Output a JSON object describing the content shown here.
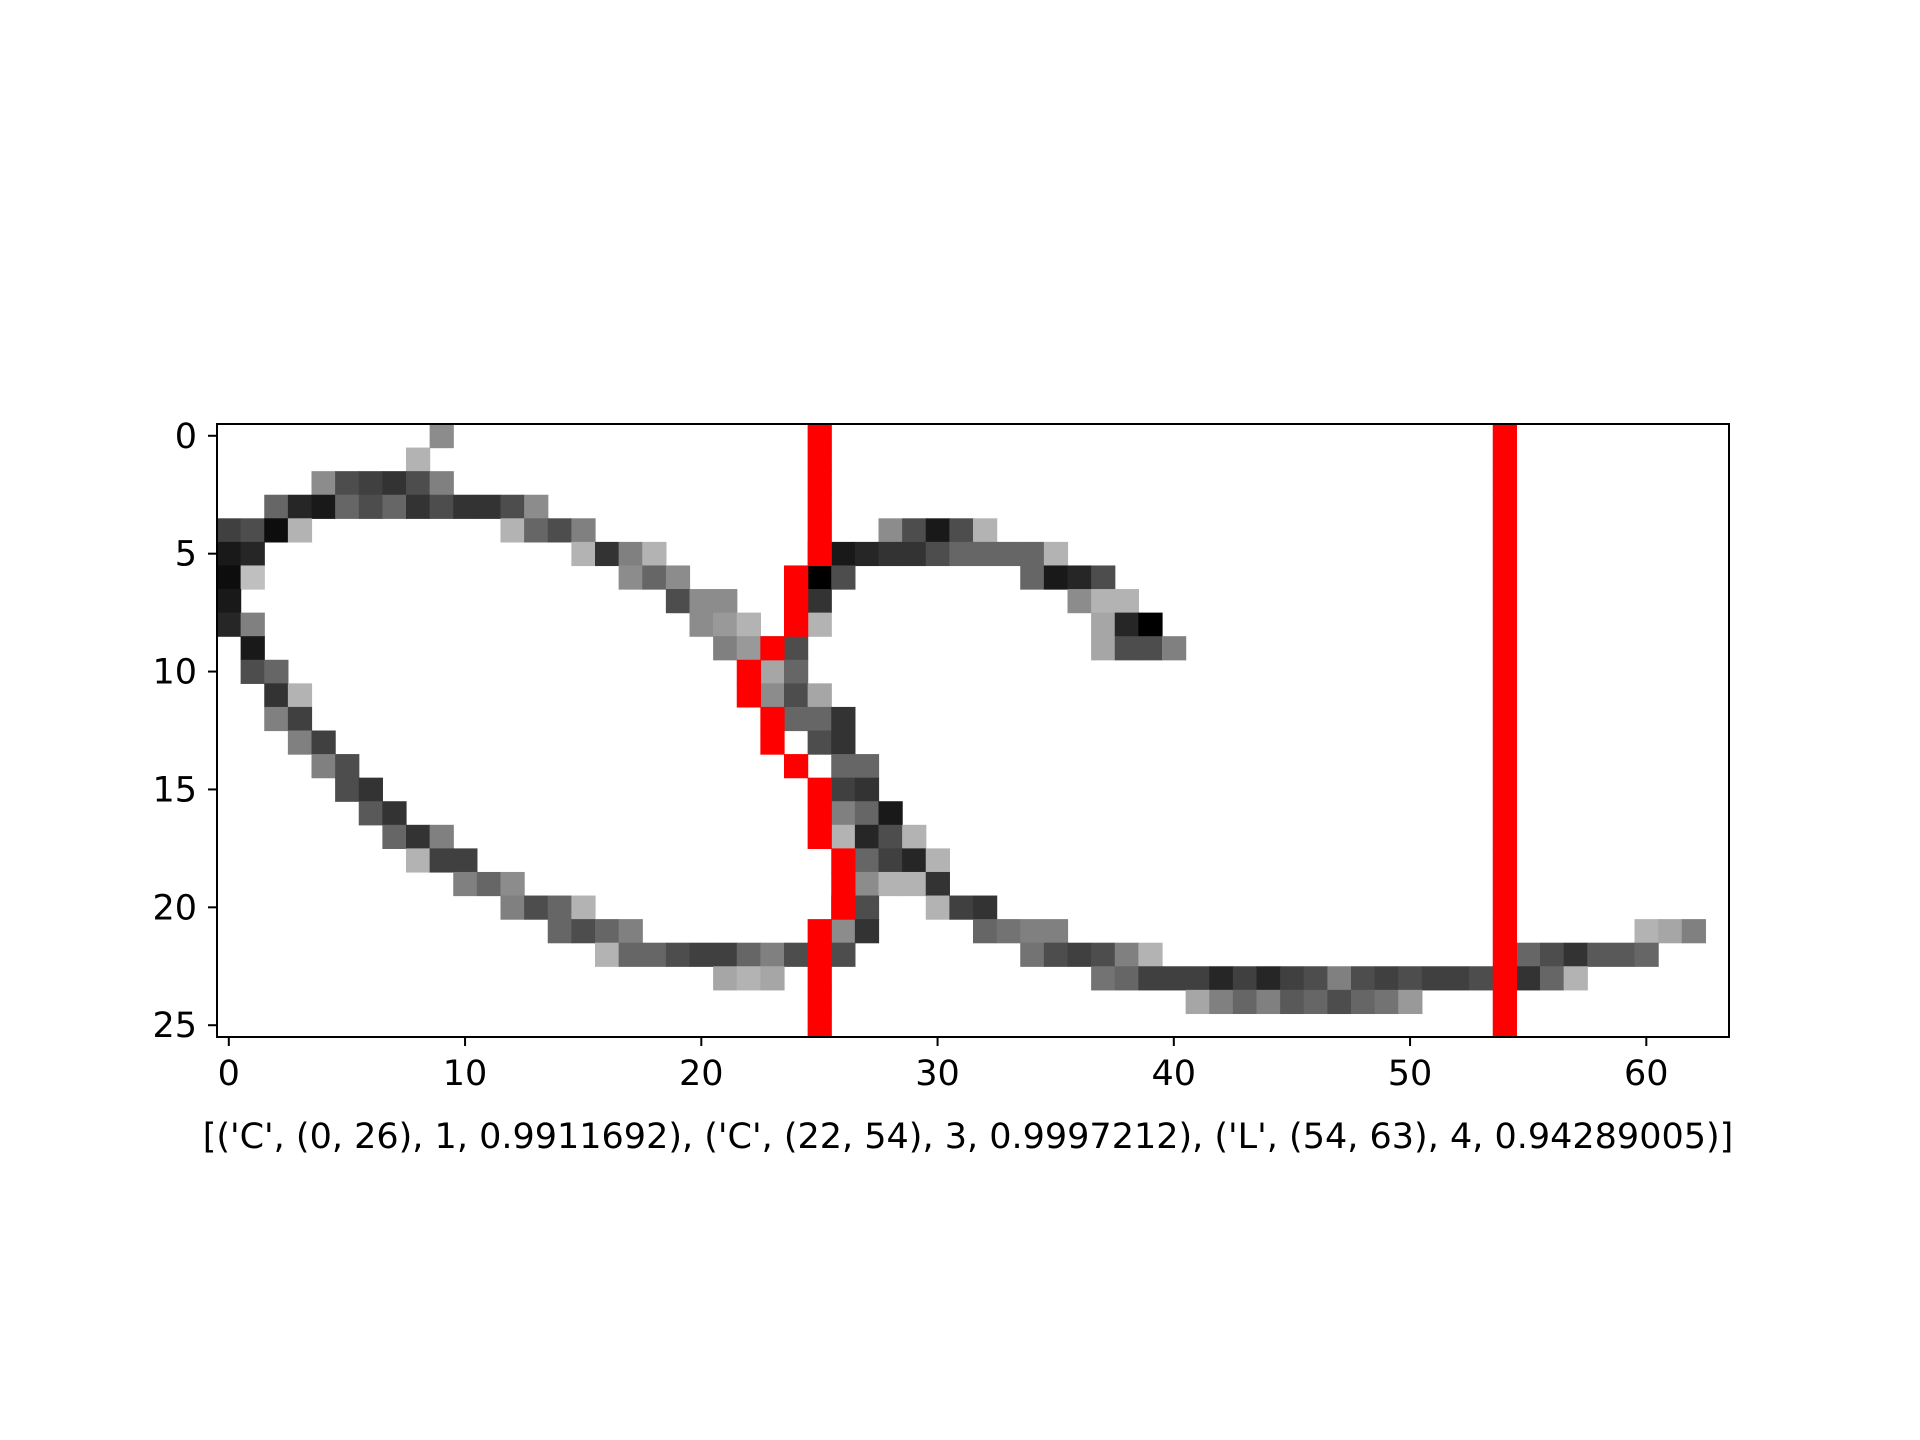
{
  "chart_data": {
    "type": "heatmap",
    "title": "",
    "xlabel": "[('C', (0, 26), 1, 0.9911692), ('C', (22, 54), 3, 0.9997212), ('L', (54, 63), 4, 0.94289005)]",
    "ylabel": "",
    "x_ticks": [
      "0",
      "10",
      "20",
      "30",
      "40",
      "50",
      "60"
    ],
    "y_ticks": [
      "0",
      "5",
      "10",
      "15",
      "20",
      "25"
    ],
    "xlim": [
      -0.5,
      63.5
    ],
    "ylim": [
      25.5,
      -0.5
    ],
    "columns": 64,
    "rows": 26,
    "colormap": "gray_r",
    "segment_color": "#ff0000",
    "grayscale_pixels": [
      [
        9,
        0,
        0.45
      ],
      [
        8,
        1,
        0.3
      ],
      [
        4,
        2,
        0.45
      ],
      [
        5,
        2,
        0.7
      ],
      [
        6,
        2,
        0.75
      ],
      [
        7,
        2,
        0.8
      ],
      [
        8,
        2,
        0.7
      ],
      [
        9,
        2,
        0.5
      ],
      [
        2,
        3,
        0.6
      ],
      [
        3,
        3,
        0.85
      ],
      [
        4,
        3,
        0.9
      ],
      [
        5,
        3,
        0.6
      ],
      [
        6,
        3,
        0.7
      ],
      [
        7,
        3,
        0.6
      ],
      [
        8,
        3,
        0.8
      ],
      [
        9,
        3,
        0.7
      ],
      [
        10,
        3,
        0.8
      ],
      [
        11,
        3,
        0.8
      ],
      [
        12,
        3,
        0.7
      ],
      [
        13,
        3,
        0.45
      ],
      [
        0,
        4,
        0.75
      ],
      [
        1,
        4,
        0.7
      ],
      [
        2,
        4,
        0.95
      ],
      [
        3,
        4,
        0.3
      ],
      [
        12,
        4,
        0.3
      ],
      [
        13,
        4,
        0.6
      ],
      [
        14,
        4,
        0.7
      ],
      [
        15,
        4,
        0.5
      ],
      [
        28,
        4,
        0.45
      ],
      [
        29,
        4,
        0.7
      ],
      [
        30,
        4,
        0.9
      ],
      [
        31,
        4,
        0.7
      ],
      [
        32,
        4,
        0.3
      ],
      [
        0,
        5,
        0.9
      ],
      [
        1,
        5,
        0.85
      ],
      [
        15,
        5,
        0.3
      ],
      [
        16,
        5,
        0.8
      ],
      [
        17,
        5,
        0.5
      ],
      [
        18,
        5,
        0.3
      ],
      [
        25,
        5,
        0.4
      ],
      [
        26,
        5,
        0.9
      ],
      [
        27,
        5,
        0.85
      ],
      [
        28,
        5,
        0.8
      ],
      [
        29,
        5,
        0.8
      ],
      [
        30,
        5,
        0.7
      ],
      [
        31,
        5,
        0.6
      ],
      [
        32,
        5,
        0.6
      ],
      [
        33,
        5,
        0.6
      ],
      [
        34,
        5,
        0.6
      ],
      [
        35,
        5,
        0.3
      ],
      [
        0,
        6,
        0.95
      ],
      [
        1,
        6,
        0.25
      ],
      [
        17,
        6,
        0.45
      ],
      [
        18,
        6,
        0.6
      ],
      [
        19,
        6,
        0.45
      ],
      [
        24,
        6,
        0.35
      ],
      [
        25,
        6,
        1.0
      ],
      [
        26,
        6,
        0.7
      ],
      [
        34,
        6,
        0.6
      ],
      [
        35,
        6,
        0.9
      ],
      [
        36,
        6,
        0.85
      ],
      [
        37,
        6,
        0.7
      ],
      [
        0,
        7,
        0.9
      ],
      [
        19,
        7,
        0.7
      ],
      [
        20,
        7,
        0.45
      ],
      [
        21,
        7,
        0.45
      ],
      [
        24,
        7,
        1.0
      ],
      [
        25,
        7,
        0.8
      ],
      [
        36,
        7,
        0.45
      ],
      [
        37,
        7,
        0.3
      ],
      [
        38,
        7,
        0.3
      ],
      [
        0,
        8,
        0.85
      ],
      [
        1,
        8,
        0.5
      ],
      [
        20,
        8,
        0.45
      ],
      [
        21,
        8,
        0.4
      ],
      [
        22,
        8,
        0.3
      ],
      [
        24,
        8,
        1.0
      ],
      [
        25,
        8,
        0.3
      ],
      [
        37,
        8,
        0.35
      ],
      [
        38,
        8,
        0.85
      ],
      [
        39,
        8,
        1.0
      ],
      [
        1,
        9,
        0.9
      ],
      [
        21,
        9,
        0.5
      ],
      [
        22,
        9,
        0.4
      ],
      [
        23,
        9,
        0.5
      ],
      [
        24,
        9,
        0.7
      ],
      [
        37,
        9,
        0.35
      ],
      [
        38,
        9,
        0.7
      ],
      [
        39,
        9,
        0.7
      ],
      [
        40,
        9,
        0.5
      ],
      [
        1,
        10,
        0.7
      ],
      [
        2,
        10,
        0.6
      ],
      [
        23,
        10,
        0.35
      ],
      [
        24,
        10,
        0.6
      ],
      [
        2,
        11,
        0.8
      ],
      [
        3,
        11,
        0.3
      ],
      [
        23,
        11,
        0.45
      ],
      [
        24,
        11,
        0.7
      ],
      [
        25,
        11,
        0.35
      ],
      [
        2,
        12,
        0.5
      ],
      [
        3,
        12,
        0.75
      ],
      [
        24,
        12,
        0.6
      ],
      [
        25,
        12,
        0.6
      ],
      [
        26,
        12,
        0.8
      ],
      [
        3,
        13,
        0.5
      ],
      [
        4,
        13,
        0.75
      ],
      [
        25,
        13,
        0.7
      ],
      [
        26,
        13,
        0.8
      ],
      [
        4,
        14,
        0.5
      ],
      [
        5,
        14,
        0.7
      ],
      [
        26,
        14,
        0.6
      ],
      [
        27,
        14,
        0.6
      ],
      [
        5,
        15,
        0.7
      ],
      [
        6,
        15,
        0.8
      ],
      [
        26,
        15,
        0.75
      ],
      [
        27,
        15,
        0.8
      ],
      [
        6,
        16,
        0.65
      ],
      [
        7,
        16,
        0.8
      ],
      [
        26,
        16,
        0.5
      ],
      [
        27,
        16,
        0.6
      ],
      [
        28,
        16,
        0.9
      ],
      [
        7,
        17,
        0.6
      ],
      [
        8,
        17,
        0.8
      ],
      [
        9,
        17,
        0.5
      ],
      [
        26,
        17,
        0.3
      ],
      [
        27,
        17,
        0.85
      ],
      [
        28,
        17,
        0.7
      ],
      [
        29,
        17,
        0.3
      ],
      [
        8,
        18,
        0.3
      ],
      [
        9,
        18,
        0.75
      ],
      [
        10,
        18,
        0.75
      ],
      [
        27,
        18,
        0.6
      ],
      [
        28,
        18,
        0.75
      ],
      [
        29,
        18,
        0.85
      ],
      [
        30,
        18,
        0.3
      ],
      [
        10,
        19,
        0.5
      ],
      [
        11,
        19,
        0.6
      ],
      [
        12,
        19,
        0.45
      ],
      [
        27,
        19,
        0.45
      ],
      [
        28,
        19,
        0.3
      ],
      [
        29,
        19,
        0.3
      ],
      [
        30,
        19,
        0.8
      ],
      [
        12,
        20,
        0.5
      ],
      [
        13,
        20,
        0.7
      ],
      [
        14,
        20,
        0.6
      ],
      [
        15,
        20,
        0.3
      ],
      [
        26,
        20,
        0.65
      ],
      [
        27,
        20,
        0.7
      ],
      [
        30,
        20,
        0.3
      ],
      [
        31,
        20,
        0.75
      ],
      [
        32,
        20,
        0.8
      ],
      [
        14,
        21,
        0.6
      ],
      [
        15,
        21,
        0.7
      ],
      [
        16,
        21,
        0.6
      ],
      [
        17,
        21,
        0.5
      ],
      [
        26,
        21,
        0.45
      ],
      [
        27,
        21,
        0.8
      ],
      [
        32,
        21,
        0.6
      ],
      [
        33,
        21,
        0.55
      ],
      [
        34,
        21,
        0.5
      ],
      [
        35,
        21,
        0.5
      ],
      [
        60,
        21,
        0.3
      ],
      [
        61,
        21,
        0.35
      ],
      [
        62,
        21,
        0.5
      ],
      [
        16,
        22,
        0.3
      ],
      [
        17,
        22,
        0.6
      ],
      [
        18,
        22,
        0.6
      ],
      [
        19,
        22,
        0.7
      ],
      [
        20,
        22,
        0.75
      ],
      [
        21,
        22,
        0.75
      ],
      [
        22,
        22,
        0.6
      ],
      [
        23,
        22,
        0.5
      ],
      [
        24,
        22,
        0.7
      ],
      [
        26,
        22,
        0.7
      ],
      [
        34,
        22,
        0.55
      ],
      [
        35,
        22,
        0.7
      ],
      [
        36,
        22,
        0.75
      ],
      [
        37,
        22,
        0.7
      ],
      [
        38,
        22,
        0.5
      ],
      [
        39,
        22,
        0.3
      ],
      [
        55,
        22,
        0.6
      ],
      [
        56,
        22,
        0.7
      ],
      [
        57,
        22,
        0.8
      ],
      [
        58,
        22,
        0.65
      ],
      [
        59,
        22,
        0.65
      ],
      [
        60,
        22,
        0.6
      ],
      [
        21,
        23,
        0.35
      ],
      [
        22,
        23,
        0.3
      ],
      [
        23,
        23,
        0.35
      ],
      [
        37,
        23,
        0.55
      ],
      [
        38,
        23,
        0.6
      ],
      [
        39,
        23,
        0.75
      ],
      [
        40,
        23,
        0.75
      ],
      [
        41,
        23,
        0.75
      ],
      [
        42,
        23,
        0.85
      ],
      [
        43,
        23,
        0.75
      ],
      [
        44,
        23,
        0.85
      ],
      [
        45,
        23,
        0.75
      ],
      [
        46,
        23,
        0.7
      ],
      [
        47,
        23,
        0.5
      ],
      [
        48,
        23,
        0.7
      ],
      [
        49,
        23,
        0.75
      ],
      [
        50,
        23,
        0.7
      ],
      [
        51,
        23,
        0.75
      ],
      [
        52,
        23,
        0.75
      ],
      [
        53,
        23,
        0.7
      ],
      [
        55,
        23,
        0.8
      ],
      [
        56,
        23,
        0.6
      ],
      [
        57,
        23,
        0.3
      ],
      [
        41,
        24,
        0.35
      ],
      [
        42,
        24,
        0.5
      ],
      [
        43,
        24,
        0.6
      ],
      [
        44,
        24,
        0.5
      ],
      [
        45,
        24,
        0.65
      ],
      [
        46,
        24,
        0.6
      ],
      [
        47,
        24,
        0.7
      ],
      [
        48,
        24,
        0.6
      ],
      [
        49,
        24,
        0.55
      ],
      [
        50,
        24,
        0.4
      ]
    ],
    "segment_pixels": [
      [
        25,
        0
      ],
      [
        25,
        1
      ],
      [
        25,
        2
      ],
      [
        25,
        3
      ],
      [
        25,
        4
      ],
      [
        25,
        5
      ],
      [
        24,
        6
      ],
      [
        24,
        7
      ],
      [
        24,
        8
      ],
      [
        23,
        9
      ],
      [
        22,
        10
      ],
      [
        22,
        11
      ],
      [
        23,
        12
      ],
      [
        23,
        13
      ],
      [
        24,
        14
      ],
      [
        25,
        15
      ],
      [
        25,
        16
      ],
      [
        25,
        17
      ],
      [
        26,
        18
      ],
      [
        26,
        19
      ],
      [
        26,
        20
      ],
      [
        25,
        21
      ],
      [
        25,
        22
      ],
      [
        25,
        23
      ],
      [
        25,
        24
      ],
      [
        25,
        25
      ],
      [
        54,
        0
      ],
      [
        54,
        1
      ],
      [
        54,
        2
      ],
      [
        54,
        3
      ],
      [
        54,
        4
      ],
      [
        54,
        5
      ],
      [
        54,
        6
      ],
      [
        54,
        7
      ],
      [
        54,
        8
      ],
      [
        54,
        9
      ],
      [
        54,
        10
      ],
      [
        54,
        11
      ],
      [
        54,
        12
      ],
      [
        54,
        13
      ],
      [
        54,
        14
      ],
      [
        54,
        15
      ],
      [
        54,
        16
      ],
      [
        54,
        17
      ],
      [
        54,
        18
      ],
      [
        54,
        19
      ],
      [
        54,
        20
      ],
      [
        54,
        21
      ],
      [
        54,
        22
      ],
      [
        54,
        23
      ],
      [
        54,
        24
      ],
      [
        54,
        25
      ]
    ]
  }
}
